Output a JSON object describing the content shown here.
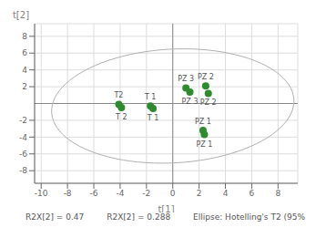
{
  "chart_data": {
    "type": "scatter",
    "xlabel": "t[1]",
    "ylabel": "t[2]",
    "points": [
      {
        "x": -4.1,
        "y": -0.1,
        "label": "T2"
      },
      {
        "x": -3.9,
        "y": -0.5,
        "label": "T 2"
      },
      {
        "x": -1.7,
        "y": -0.3,
        "label": "T 1"
      },
      {
        "x": -1.5,
        "y": -0.6,
        "label": "T 1"
      },
      {
        "x": 1.0,
        "y": 1.85,
        "label": "PZ 3"
      },
      {
        "x": 1.3,
        "y": 1.35,
        "label": "PZ 3"
      },
      {
        "x": 2.5,
        "y": 2.1,
        "label": "PZ 2"
      },
      {
        "x": 2.7,
        "y": 1.2,
        "label": "PZ 2"
      },
      {
        "x": 2.3,
        "y": -3.2,
        "label": "PZ 1"
      },
      {
        "x": 2.4,
        "y": -3.7,
        "label": "PZ 1"
      }
    ],
    "color": "#2e8b2e",
    "ellipse": {
      "cx": 0.0,
      "cy": -0.3,
      "width": 18.5,
      "height": 13.5,
      "angle": 8.0,
      "color": "#b0b0b0"
    },
    "xlim": [
      -10.5,
      9.5
    ],
    "ylim": [
      -9.5,
      9.5
    ],
    "xticks": [
      -10,
      -8,
      -6,
      -4,
      -2,
      0,
      2,
      4,
      6,
      8
    ],
    "yticks": [
      -8,
      -6,
      -4,
      -2,
      2,
      4,
      6,
      8
    ],
    "grid": true,
    "annotations": [
      "R2X[2] = 0.47",
      "R2X[2] = 0.288",
      "Ellipse: Hotelling's T2 (95%"
    ]
  }
}
